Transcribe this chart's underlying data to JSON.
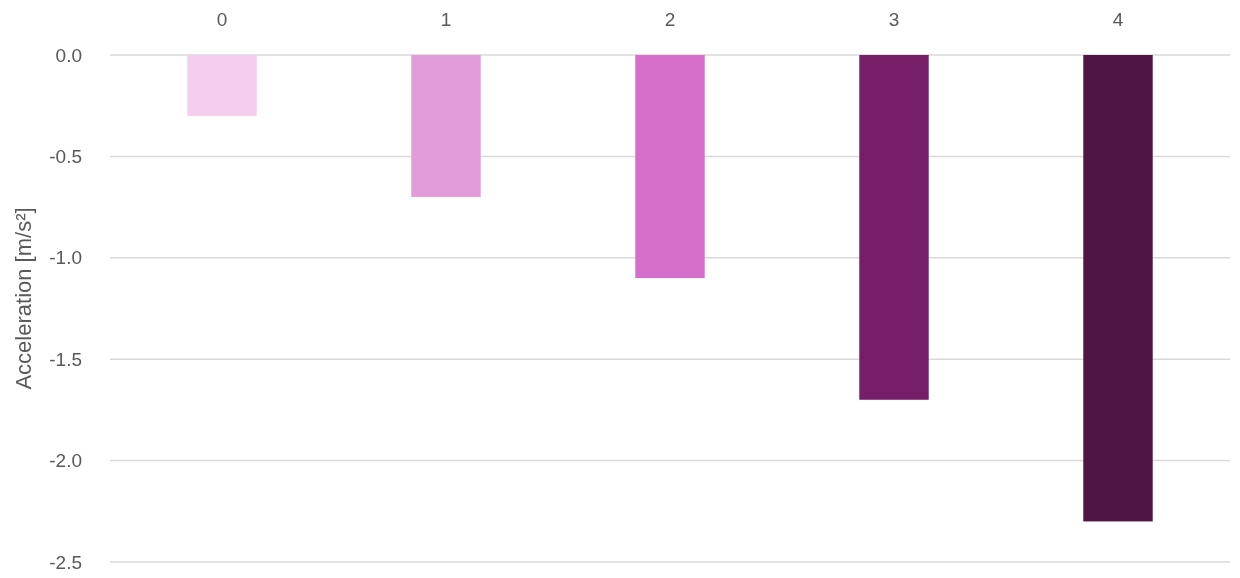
{
  "chart_data": {
    "type": "bar",
    "categories": [
      "0",
      "1",
      "2",
      "3",
      "4"
    ],
    "values": [
      -0.3,
      -0.7,
      -1.1,
      -1.7,
      -2.3
    ],
    "colors": [
      "#f2cdee",
      "#e29cda",
      "#d56fca",
      "#761f68",
      "#4f1645"
    ],
    "ylabel": "Acceleration [m/s²]",
    "ylim": [
      -2.5,
      0
    ],
    "yticks": [
      {
        "value": 0,
        "label": "0.0"
      },
      {
        "value": -0.5,
        "label": "-0.5"
      },
      {
        "value": -1,
        "label": "-1.0"
      },
      {
        "value": -1.5,
        "label": "-1.5"
      },
      {
        "value": -2,
        "label": "-2.0"
      },
      {
        "value": -2.5,
        "label": "-2.5"
      }
    ],
    "grid": "y"
  }
}
